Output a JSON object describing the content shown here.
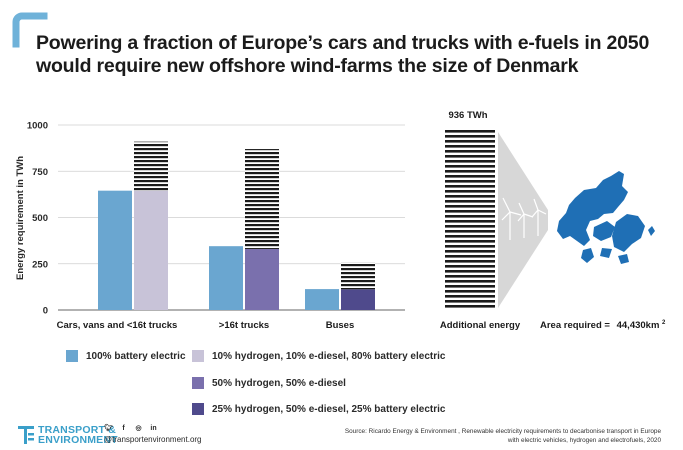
{
  "title": {
    "line1": "Powering a fraction of Europe’s cars and trucks with e-fuels in 2050",
    "line2": "would require new offshore wind-farms the size of Denmark"
  },
  "chart_data": {
    "type": "bar",
    "ylabel": "Energy requirement in TWh",
    "ylim": [
      0,
      1000
    ],
    "yticks": [
      0,
      250,
      500,
      750,
      1000
    ],
    "categories": [
      "Cars, vans and <16t trucks",
      ">16t trucks",
      "Buses"
    ],
    "series": [
      {
        "name": "100% battery electric",
        "values": [
          645,
          345,
          113
        ],
        "color": "#6aa6d0"
      },
      {
        "name": "10% hydrogen, 10% e-diesel, 80% battery electric",
        "values": [
          910,
          null,
          null
        ],
        "battery_portion": [
          645,
          null,
          null
        ],
        "color": "#c8c3d8"
      },
      {
        "name": "50% hydrogen, 50% e-diesel",
        "values": [
          null,
          870,
          null
        ],
        "battery_portion": [
          null,
          330,
          null
        ],
        "color": "#7a70ad"
      },
      {
        "name": "25% hydrogen, 50% e-diesel, 25% battery electric",
        "values": [
          null,
          null,
          258
        ],
        "battery_portion": [
          null,
          null,
          112
        ],
        "color": "#4f4a8c"
      }
    ],
    "additional": {
      "label": "Additional  energy",
      "value": 936,
      "value_label": "936 TWh"
    },
    "area": {
      "label": "Area required =",
      "value": "44,430km",
      "sup": "2"
    }
  },
  "legend_items": [
    {
      "label": "100% battery electric",
      "color": "#6aa6d0"
    },
    {
      "label": "10% hydrogen, 10% e-diesel, 80% battery electric",
      "color": "#c8c3d8"
    },
    {
      "label": "50% hydrogen, 50% e-diesel",
      "color": "#7a70ad"
    },
    {
      "label": "25% hydrogen, 50% e-diesel, 25% battery electric",
      "color": "#4f4a8c"
    }
  ],
  "footer": {
    "brand_line1": "TRANSPORT &",
    "brand_line2": "ENVIRONMENT",
    "website": "@transportenvironment.org",
    "social_icons": [
      "twitter-icon",
      "facebook-icon",
      "instagram-icon",
      "linkedin-icon"
    ],
    "source_line1": "Source: Ricardo Energy & Environment , Renewable electricity requirements to decarbonise transport in Europe",
    "source_line2": "with electric vehicles, hydrogen and electrofuels, 2020"
  },
  "colors": {
    "accent": "#3a9fc9",
    "denmark": "#1f6fb5"
  }
}
